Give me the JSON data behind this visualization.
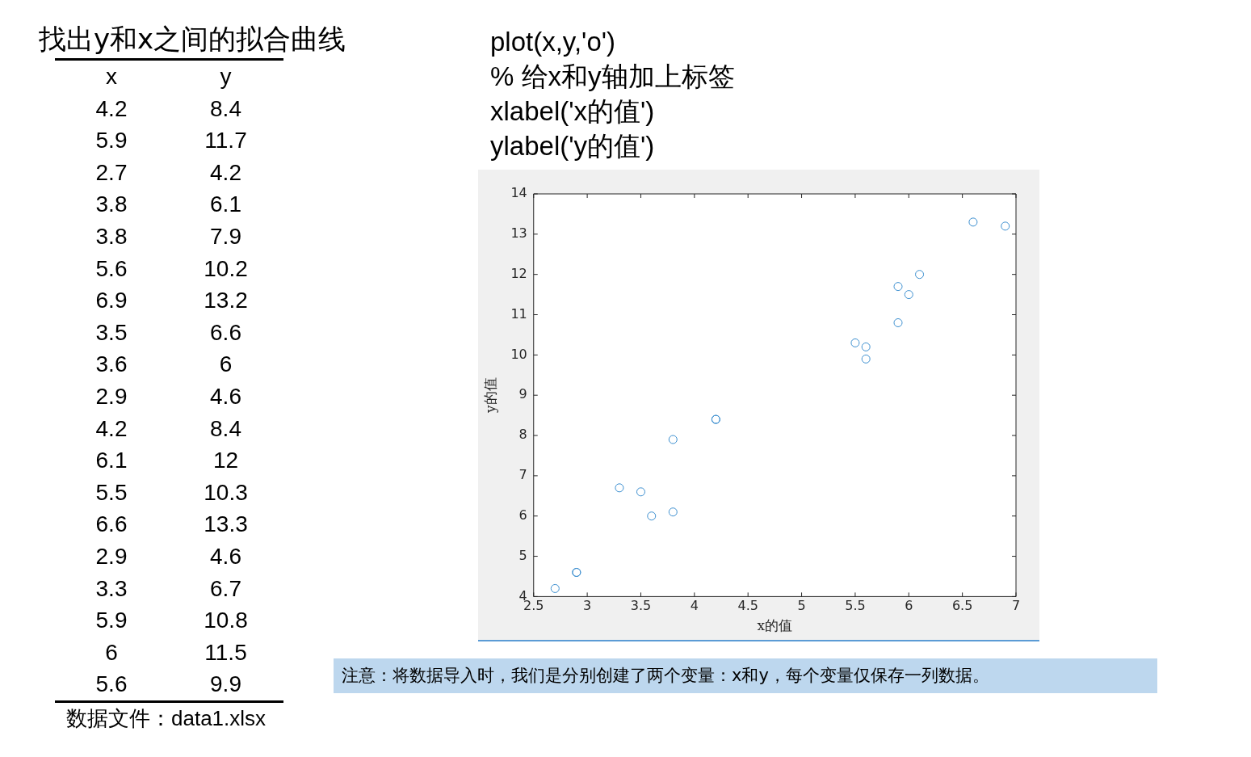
{
  "chart_data": {
    "type": "scatter",
    "title": "找出y和x之间的拟合曲线",
    "xlabel": "x的值",
    "ylabel": "y的值",
    "x": [
      4.2,
      5.9,
      2.7,
      3.8,
      3.8,
      5.6,
      6.9,
      3.5,
      3.6,
      2.9,
      4.2,
      6.1,
      5.5,
      6.6,
      2.9,
      3.3,
      5.9,
      6,
      5.6
    ],
    "values": [
      8.4,
      11.7,
      4.2,
      6.1,
      7.9,
      10.2,
      13.2,
      6.6,
      6,
      4.6,
      8.4,
      12,
      10.3,
      13.3,
      4.6,
      6.7,
      10.8,
      11.5,
      9.9
    ],
    "color": "#3c8fd0",
    "marker": "circle",
    "grid": false,
    "legend": false,
    "xlim": [
      2.5,
      7
    ],
    "xticks": [
      2.5,
      3,
      3.5,
      4,
      4.5,
      5,
      5.5,
      6,
      6.5,
      7
    ],
    "ylim": [
      4,
      14
    ],
    "yticks": [
      4,
      5,
      6,
      7,
      8,
      9,
      10,
      11,
      12,
      13,
      14
    ],
    "annotations": [
      "plot(x,y,'o')",
      "% 给x和y轴加上标签",
      "xlabel('x的值')",
      "ylabel('y的值')",
      "数据文件：data1.xlsx",
      "注意：将数据导入时，我们是分别创建了两个变量：x和y，每个变量仅保存一列数据。",
      "x",
      "y",
      "4.2",
      "8.4",
      "5.9",
      "11.7",
      "2.7",
      "4.2",
      "3.8",
      "6.1",
      "3.8",
      "7.9",
      "5.6",
      "10.2",
      "6.9",
      "13.2",
      "3.5",
      "6.6",
      "3.6",
      "6",
      "2.9",
      "4.6",
      "4.2",
      "8.4",
      "6.1",
      "12",
      "5.5",
      "10.3",
      "6.6",
      "13.3",
      "2.9",
      "4.6",
      "3.3",
      "6.7",
      "5.9",
      "10.8",
      "6",
      "11.5",
      "5.6",
      "9.9"
    ]
  }
}
